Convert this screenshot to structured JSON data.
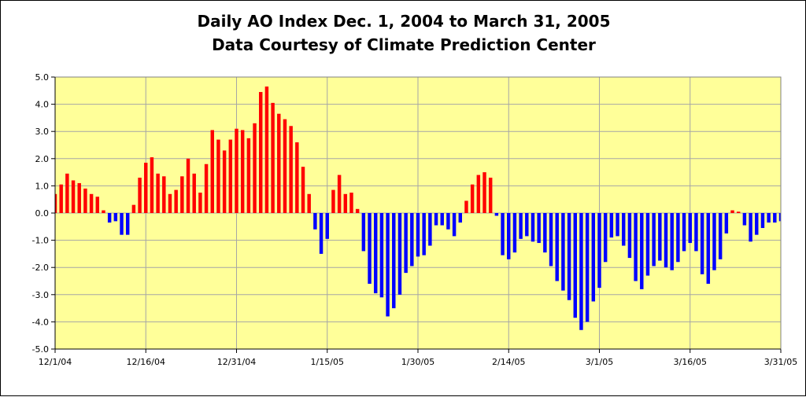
{
  "chart_data": {
    "type": "bar",
    "title": "Daily AO Index Dec. 1, 2004 to March 31, 2005",
    "subtitle": "Data Courtesy of Climate Prediction Center",
    "xlabel": "",
    "ylabel": "",
    "ylim": [
      -5,
      5
    ],
    "ytick_labels": [
      "5.0",
      "4.0",
      "3.0",
      "2.0",
      "1.0",
      "0.0",
      "-1.0",
      "-2.0",
      "-3.0",
      "-4.0",
      "-5.0"
    ],
    "xtick_labels": [
      "12/1/04",
      "12/16/04",
      "12/31/04",
      "1/15/05",
      "1/30/05",
      "2/14/05",
      "3/1/05",
      "3/16/05",
      "3/31/05"
    ],
    "grid": true,
    "colors": {
      "positive": "#ff0000",
      "negative": "#0000ff",
      "plot_background": "#ffff99",
      "gridline": "#a6a6a6"
    },
    "series": [
      {
        "name": "Daily AO Index",
        "values": [
          0.7,
          1.05,
          1.45,
          1.2,
          1.1,
          0.9,
          0.7,
          0.6,
          0.1,
          -0.35,
          -0.3,
          -0.8,
          -0.8,
          0.3,
          1.3,
          1.85,
          2.05,
          1.45,
          1.35,
          0.7,
          0.85,
          1.35,
          2.0,
          1.45,
          0.75,
          1.8,
          3.05,
          2.7,
          2.3,
          2.7,
          3.1,
          3.05,
          2.75,
          3.3,
          4.45,
          4.65,
          4.05,
          3.65,
          3.45,
          3.2,
          2.6,
          1.7,
          0.7,
          -0.6,
          -1.5,
          -0.95,
          0.85,
          1.4,
          0.7,
          0.75,
          0.15,
          -1.4,
          -2.6,
          -2.95,
          -3.1,
          -3.8,
          -3.5,
          -3.0,
          -2.2,
          -1.95,
          -1.6,
          -1.55,
          -1.2,
          -0.45,
          -0.45,
          -0.6,
          -0.85,
          -0.35,
          0.45,
          1.05,
          1.4,
          1.5,
          1.3,
          -0.1,
          -1.55,
          -1.7,
          -1.45,
          -0.95,
          -0.85,
          -1.05,
          -1.1,
          -1.45,
          -1.95,
          -2.5,
          -2.85,
          -3.2,
          -3.85,
          -4.3,
          -4.0,
          -3.25,
          -2.75,
          -1.8,
          -0.9,
          -0.85,
          -1.2,
          -1.65,
          -2.5,
          -2.8,
          -2.3,
          -1.95,
          -1.75,
          -2.0,
          -2.1,
          -1.8,
          -1.4,
          -1.1,
          -1.4,
          -2.25,
          -2.6,
          -2.1,
          -1.7,
          -0.75,
          0.1,
          0.05,
          -0.45,
          -1.05,
          -0.8,
          -0.55,
          -0.35,
          -0.35,
          -0.3
        ]
      }
    ]
  }
}
